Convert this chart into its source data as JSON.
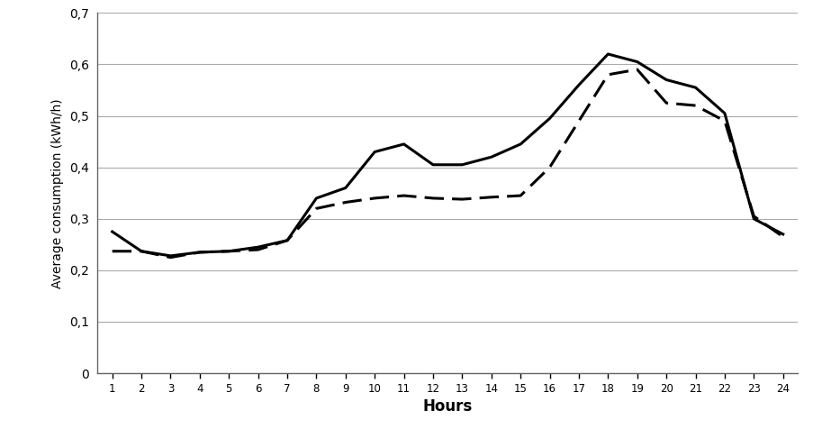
{
  "hours": [
    1,
    2,
    3,
    4,
    5,
    6,
    7,
    8,
    9,
    10,
    11,
    12,
    13,
    14,
    15,
    16,
    17,
    18,
    19,
    20,
    21,
    22,
    23,
    24
  ],
  "solid_line": [
    0.275,
    0.237,
    0.228,
    0.235,
    0.237,
    0.245,
    0.258,
    0.34,
    0.36,
    0.43,
    0.445,
    0.405,
    0.405,
    0.42,
    0.445,
    0.495,
    0.56,
    0.62,
    0.605,
    0.57,
    0.555,
    0.505,
    0.3,
    0.27
  ],
  "dashed_line": [
    0.237,
    0.237,
    0.225,
    0.235,
    0.237,
    0.24,
    0.258,
    0.32,
    0.332,
    0.34,
    0.345,
    0.34,
    0.338,
    0.342,
    0.345,
    0.4,
    0.49,
    0.58,
    0.59,
    0.525,
    0.52,
    0.49,
    0.305,
    0.265
  ],
  "xlabel": "Hours",
  "ylabel": "Average consumption (kWh/h)",
  "ylim": [
    0,
    0.7
  ],
  "yticks": [
    0,
    0.1,
    0.2,
    0.3,
    0.4,
    0.5,
    0.6,
    0.7
  ],
  "ytick_labels": [
    "0",
    "0,1",
    "0,2",
    "0,3",
    "0,4",
    "0,5",
    "0,6",
    "0,7"
  ],
  "line_color": "#000000",
  "background_color": "#ffffff",
  "grid_color": "#aaaaaa"
}
